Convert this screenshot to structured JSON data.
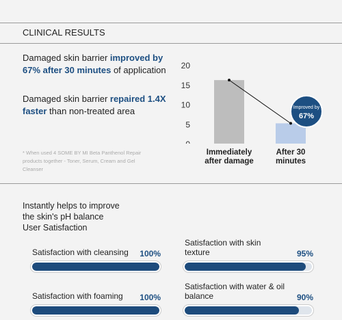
{
  "header": {
    "title": "CLINICAL RESULTS"
  },
  "claims": [
    [
      "Damaged skin barrier ",
      "improved by 67% after 30 minutes",
      " of application"
    ],
    [
      "Damaged skin barrier ",
      "repaired 1.4X faster",
      " than non-treated area"
    ]
  ],
  "footnote": "* When used 4 SOME BY MI Beta Panthenol Repair products together - Toner, Serum, Cream and Gel Cleanser",
  "chart_data": {
    "type": "bar",
    "categories": [
      "Immediately after damage",
      "After 30 minutes"
    ],
    "values": [
      16.5,
      5.5
    ],
    "colors": [
      "#bdbdbd",
      "#b9cce9"
    ],
    "ylim": [
      0,
      20
    ],
    "yticks": [
      0,
      5,
      10,
      15,
      20
    ],
    "annotation": [
      "Improved by",
      "67%"
    ]
  },
  "satisfaction": {
    "heading": [
      "Instantly helps to improve",
      "the skin's pH balance",
      "User Satisfaction"
    ],
    "items": [
      {
        "label": "Satisfaction with cleansing",
        "value": 100,
        "value_label": "100%"
      },
      {
        "label": "Satisfaction with skin texture",
        "value": 95,
        "value_label": "95%"
      },
      {
        "label": "Satisfaction with foaming",
        "value": 100,
        "value_label": "100%"
      },
      {
        "label": "Satisfaction with water & oil balance",
        "value": 90,
        "value_label": "90%"
      }
    ]
  }
}
